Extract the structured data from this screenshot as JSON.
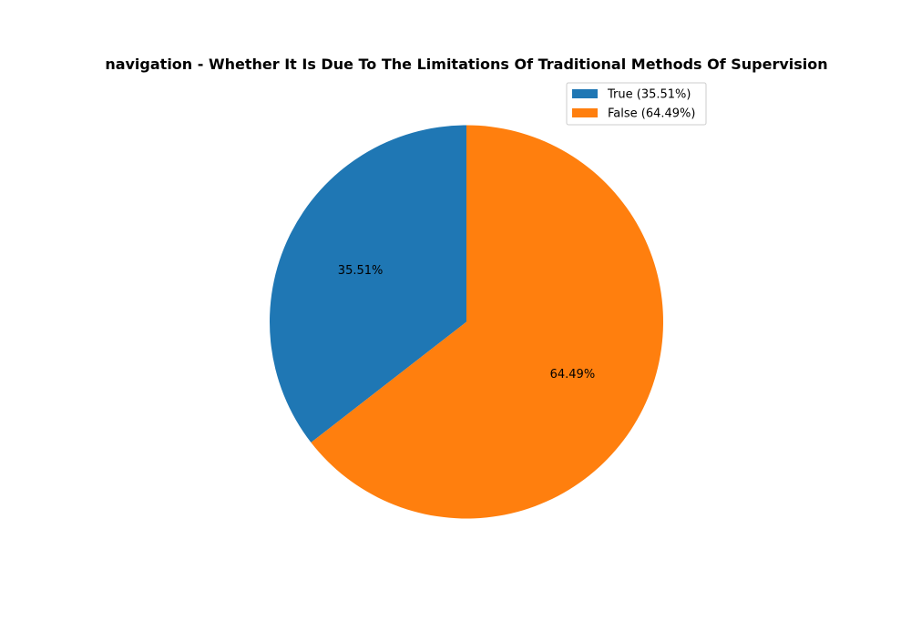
{
  "chart_data": {
    "type": "pie",
    "title": "navigation - Whether It Is Due To The Limitations Of Traditional Methods Of Supervision",
    "slices": [
      {
        "label": "True",
        "value": 35.51,
        "percent_label": "35.51%",
        "legend_label": "True (35.51%)",
        "color": "#1f77b4"
      },
      {
        "label": "False",
        "value": 64.49,
        "percent_label": "64.49%",
        "legend_label": "False (64.49%)",
        "color": "#ff7f0e"
      }
    ],
    "start_angle_deg": 90,
    "direction": "counterclockwise",
    "legend_placement": "upper-right",
    "grid": false
  }
}
